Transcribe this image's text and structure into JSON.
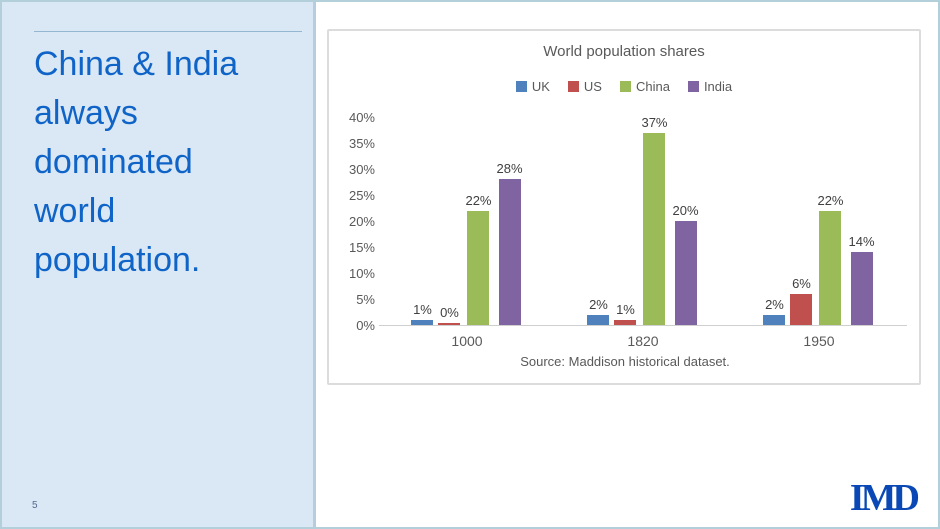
{
  "slide": {
    "title_lines": [
      "China & India",
      "always",
      "dominated",
      "world",
      "population."
    ],
    "title_color": "#1064c8",
    "sidebar_bg": "#d9e8f4",
    "page_number": "5",
    "logo_text": "IMD",
    "logo_color": "#0a49b5"
  },
  "chart_data": {
    "type": "bar",
    "title": "World population shares",
    "source": "Source: Maddison historical dataset.",
    "categories": [
      "1000",
      "1820",
      "1950"
    ],
    "series": [
      {
        "name": "UK",
        "color": "#4F81BD",
        "values": [
          1,
          2,
          2
        ]
      },
      {
        "name": "US",
        "color": "#C0504D",
        "values": [
          0,
          1,
          6
        ]
      },
      {
        "name": "China",
        "color": "#9BBB59",
        "values": [
          22,
          37,
          22
        ]
      },
      {
        "name": "India",
        "color": "#8064A2",
        "values": [
          28,
          20,
          14
        ]
      }
    ],
    "data_label_format": "{v}%",
    "ylabel": "",
    "xlabel": "",
    "ylim": [
      0,
      40
    ],
    "y_ticks": [
      "40%",
      "35%",
      "30%",
      "25%",
      "20%",
      "15%",
      "10%",
      "5%",
      "0%"
    ],
    "grid": false,
    "legend_position": "top"
  }
}
